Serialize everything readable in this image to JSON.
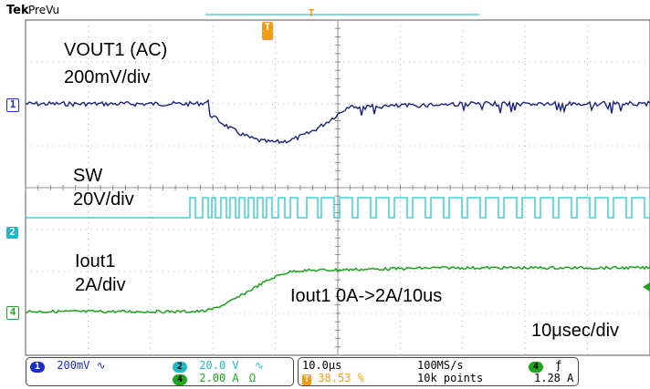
{
  "header": {
    "brand": "Tek",
    "mode": "PreVu"
  },
  "markers": {
    "trigger_pos": "T",
    "ch1": "1",
    "ch2": "2",
    "ch4": "4"
  },
  "annotations": {
    "vout_title": "VOUT1 (AC)",
    "vout_scale": "200mV/div",
    "sw_title": "SW",
    "sw_scale": "20V/div",
    "iout_title": "Iout1",
    "iout_scale": "2A/div",
    "step_note": "Iout1 0A->2A/10us",
    "timebase_note": "10μsec/div"
  },
  "status": {
    "ch1": {
      "badge": "1",
      "scale": "200mV",
      "coupling": "∿",
      "color": "#1a2fc9"
    },
    "ch2": {
      "badge": "2",
      "scale": "20.0 V",
      "coupling": "∿",
      "color": "#20b8c8"
    },
    "ch4": {
      "badge": "4",
      "scale": "2.00 A",
      "coupling": "Ω",
      "color": "#1ea71e"
    },
    "horizontal": {
      "scale": "10.0μs",
      "position": "38.53 %",
      "pos_icon": "T"
    },
    "acquisition": {
      "rate": "100MS/s",
      "points": "10k points"
    },
    "trigger": {
      "badge": "4",
      "slope": "ƒ",
      "level": "1.28 A"
    }
  },
  "colors": {
    "ch1": "#1a237e",
    "ch2": "#1ec8d2",
    "ch4": "#18a418",
    "marker": "#f39c12",
    "grid": "#777777"
  }
}
